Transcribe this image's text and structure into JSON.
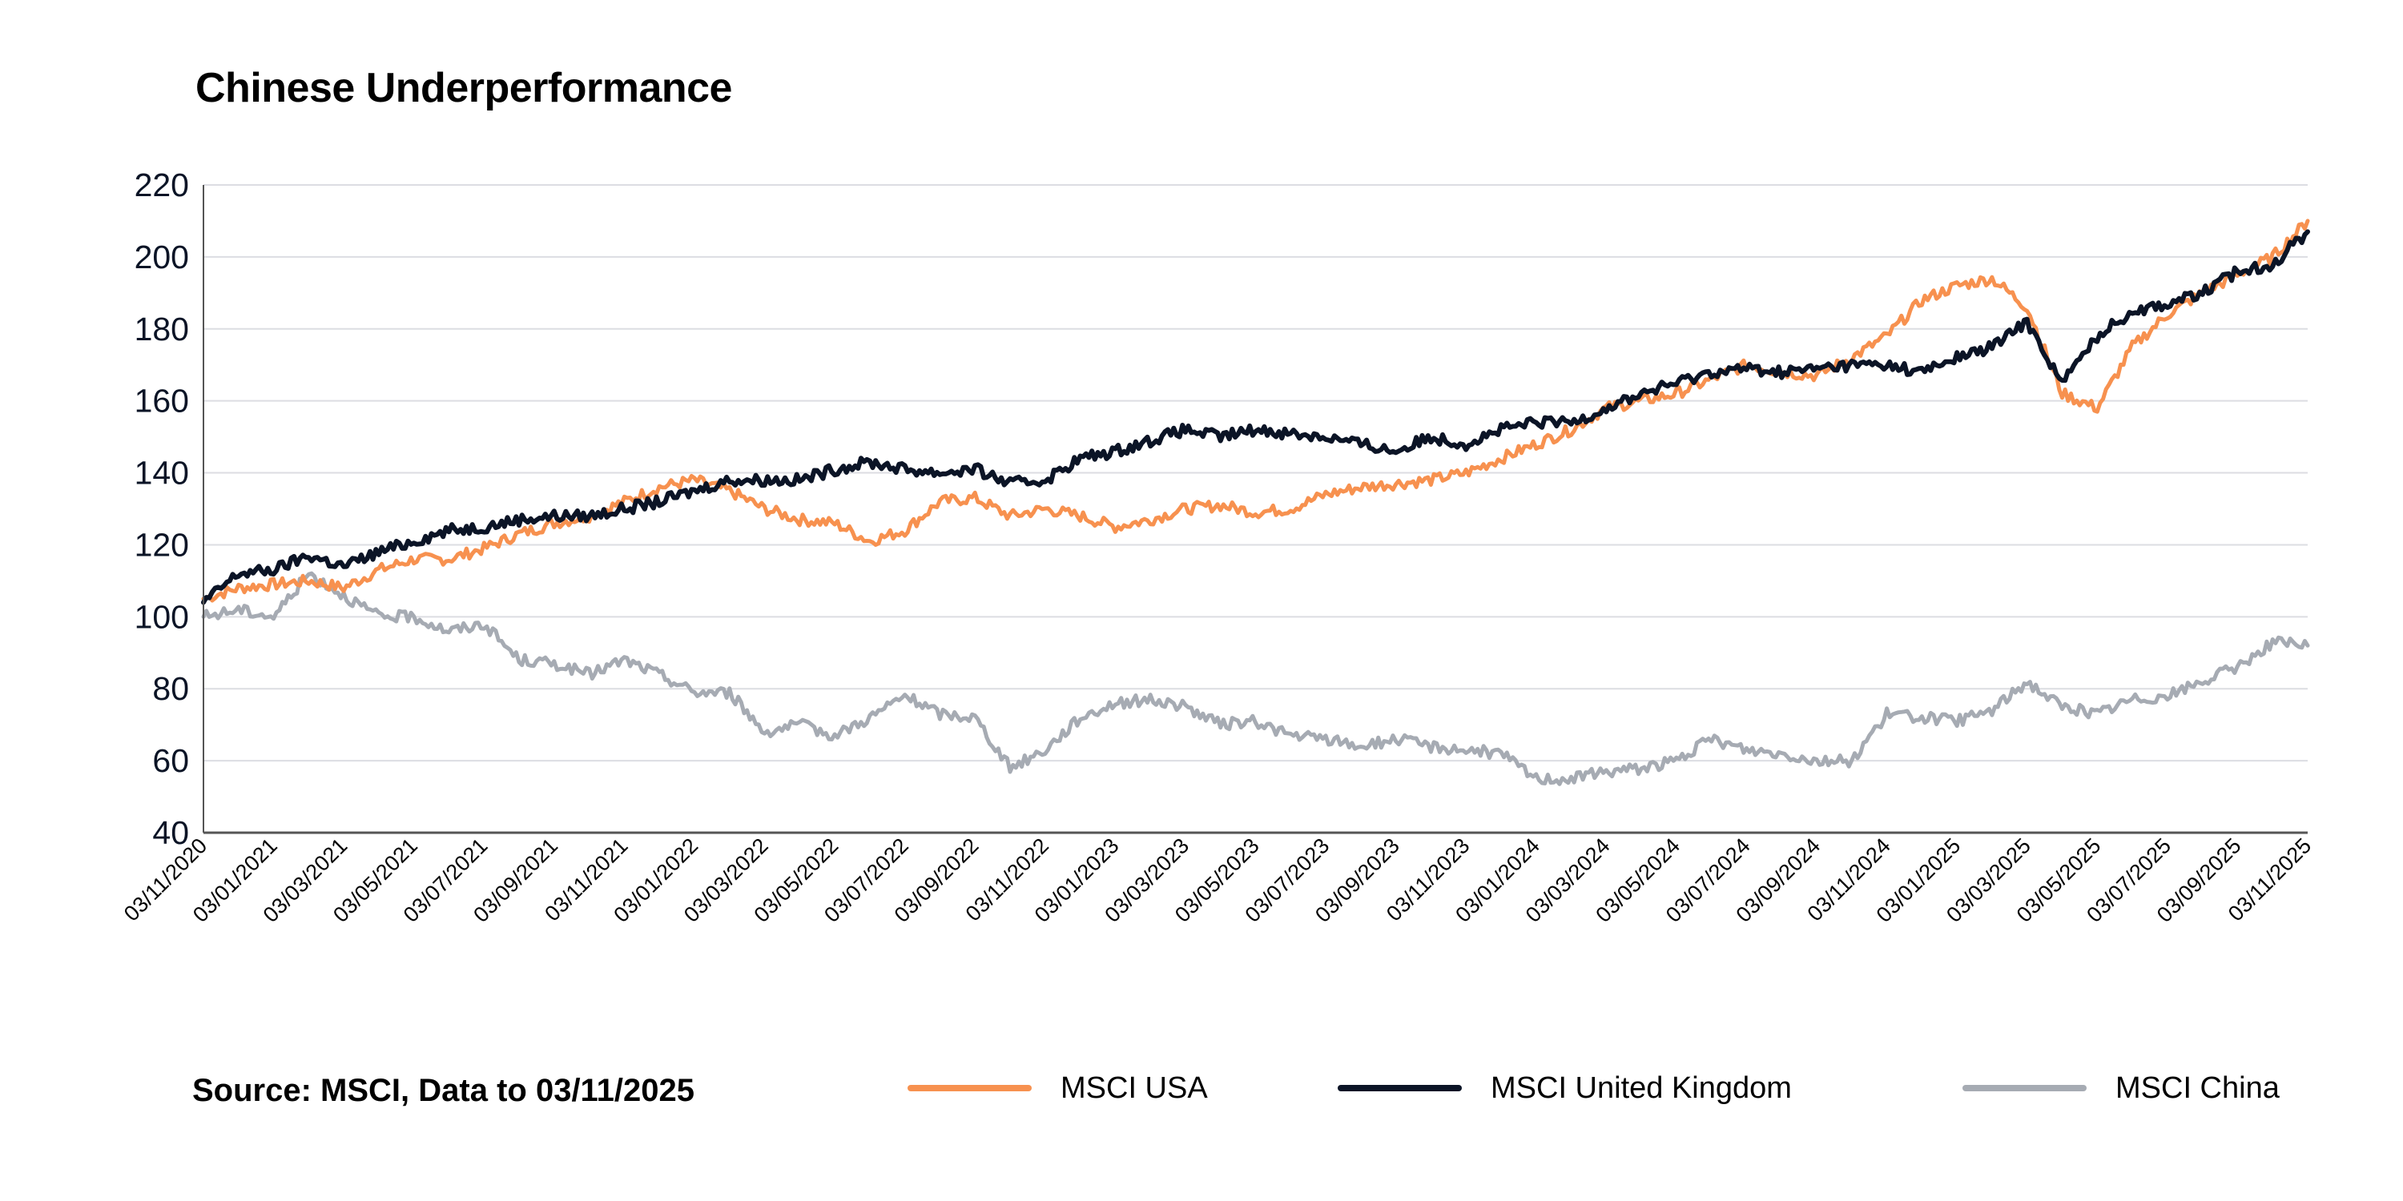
{
  "chart_data": {
    "type": "line",
    "title": "Chinese Underperformance",
    "xlabel": "",
    "ylabel": "",
    "ylim": [
      40,
      220
    ],
    "yticks": [
      40,
      60,
      80,
      100,
      120,
      140,
      160,
      180,
      200,
      220
    ],
    "ytick_labels": [
      "40",
      "60",
      "80",
      "100",
      "120",
      "140",
      "160",
      "180",
      "200",
      "220"
    ],
    "grid": true,
    "legend_position": "bottom",
    "xtick_labels": [
      "03/11/2020",
      "03/01/2021",
      "03/03/2021",
      "03/05/2021",
      "03/07/2021",
      "03/09/2021",
      "03/11/2021",
      "03/01/2022",
      "03/03/2022",
      "03/05/2022",
      "03/07/2022",
      "03/09/2022",
      "03/11/2022",
      "03/01/2023",
      "03/03/2023",
      "03/05/2023",
      "03/07/2023",
      "03/09/2023",
      "03/11/2023",
      "03/01/2024",
      "03/03/2024",
      "03/05/2024",
      "03/07/2024",
      "03/09/2024",
      "03/11/2024",
      "03/01/2025",
      "03/03/2025",
      "03/05/2025",
      "03/07/2025",
      "03/09/2025",
      "03/11/2025"
    ],
    "x_months_start": "2020-11",
    "x_months_count": 61,
    "series": [
      {
        "name": "MSCI USA",
        "color": "#f7914f",
        "values": [
          105,
          108,
          109,
          110,
          108,
          113,
          116,
          116,
          119,
          123,
          126,
          128,
          132,
          136,
          138,
          135,
          130,
          127,
          126,
          121,
          124,
          132,
          133,
          128,
          130,
          128,
          125,
          127,
          130,
          131,
          129,
          130,
          134,
          136,
          137,
          138,
          140,
          144,
          148,
          152,
          158,
          160,
          162,
          166,
          170,
          168,
          167,
          172,
          178,
          188,
          192,
          194,
          186,
          162,
          158,
          175,
          184,
          190,
          195,
          200,
          210
        ]
      },
      {
        "name": "MSCI United Kingdom",
        "color": "#0b1426",
        "values": [
          104,
          112,
          113,
          117,
          114,
          118,
          121,
          124,
          125,
          127,
          128,
          128,
          130,
          132,
          135,
          138,
          138,
          138,
          141,
          143,
          141,
          140,
          141,
          137,
          138,
          144,
          146,
          149,
          152,
          150,
          152,
          151,
          150,
          148,
          146,
          150,
          148,
          152,
          154,
          154,
          158,
          162,
          165,
          168,
          169,
          168,
          169,
          170,
          170,
          168,
          172,
          175,
          182,
          165,
          178,
          185,
          187,
          190,
          196,
          198,
          207
        ]
      },
      {
        "name": "MSCI China",
        "color": "#a6abb3",
        "values": [
          100,
          102,
          100,
          112,
          106,
          100,
          100,
          96,
          98,
          88,
          87,
          84,
          88,
          84,
          79,
          79,
          68,
          70,
          67,
          72,
          78,
          73,
          72,
          58,
          63,
          72,
          76,
          77,
          75,
          70,
          71,
          67,
          66,
          64,
          66,
          64,
          63,
          62,
          55,
          55,
          57,
          58,
          60,
          66,
          63,
          62,
          60,
          60,
          73,
          72,
          71,
          74,
          82,
          75,
          73,
          77,
          78,
          82,
          86,
          93,
          92
        ]
      }
    ]
  },
  "footer": {
    "source": "Source: MSCI, Data to 03/11/2025"
  },
  "legend": [
    {
      "label": "MSCI USA",
      "color": "#f7914f"
    },
    {
      "label": "MSCI United Kingdom",
      "color": "#0b1426"
    },
    {
      "label": "MSCI China",
      "color": "#a6abb3"
    }
  ]
}
